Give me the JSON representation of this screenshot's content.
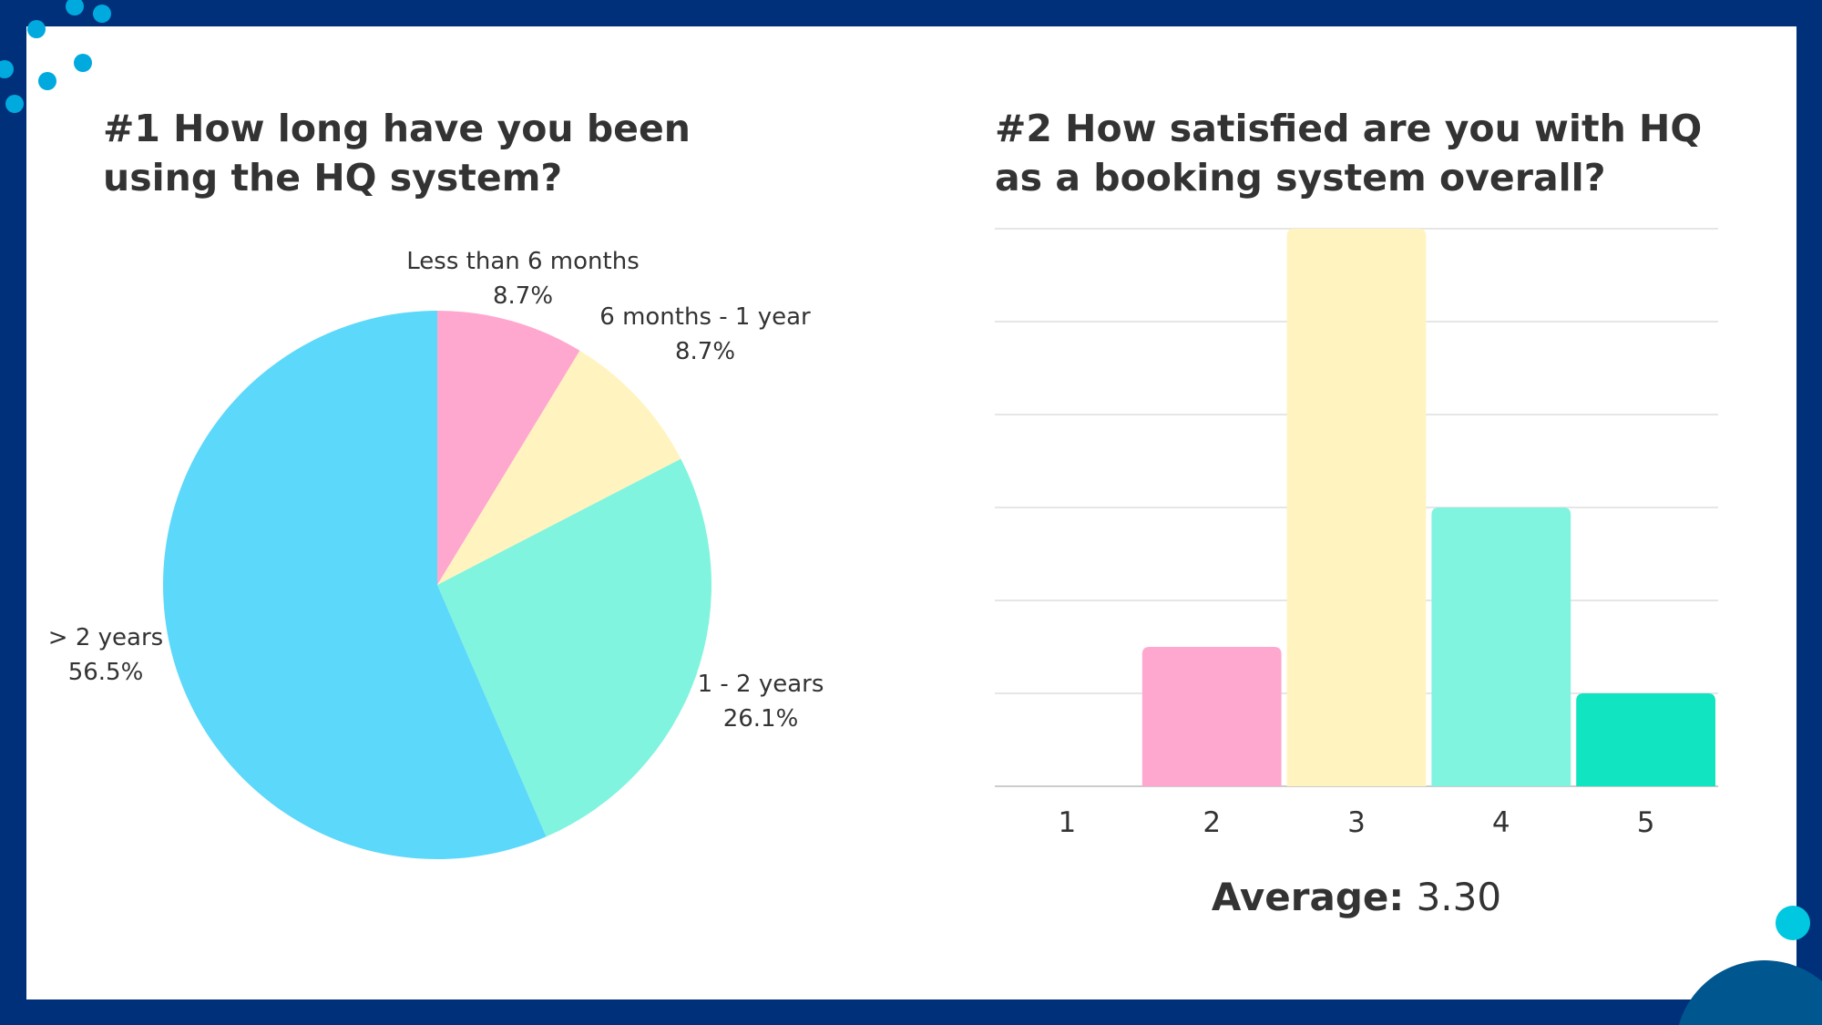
{
  "colors": {
    "frame": "#00307a",
    "dots": "#00a9de",
    "accent_circle": "#00c8e0",
    "corner_circle": "#00568f"
  },
  "chart_data": [
    {
      "type": "pie",
      "title": "#1 How long have you been using the HQ system?",
      "slices": [
        {
          "label": "Less than 6 months",
          "value": 8.7,
          "display": "8.7%",
          "color": "#ffa8cf"
        },
        {
          "label": "6 months - 1 year",
          "value": 8.7,
          "display": "8.7%",
          "color": "#fff4bf"
        },
        {
          "label": "1 - 2 years",
          "value": 26.1,
          "display": "26.1%",
          "color": "#80f4de"
        },
        {
          "label": "> 2 years",
          "value": 56.5,
          "display": "56.5%",
          "color": "#5cd8fa"
        }
      ]
    },
    {
      "type": "bar",
      "title": "#2 How satisfied are you with HQ as a booking system overall?",
      "categories": [
        "1",
        "2",
        "3",
        "4",
        "5"
      ],
      "values": [
        0,
        3,
        12,
        6,
        2
      ],
      "colors": [
        "#ffa8cf",
        "#ffa8cf",
        "#fff4bf",
        "#80f4de",
        "#10e4c0"
      ],
      "ylim": [
        0,
        12
      ],
      "ytick_step": 2,
      "grid": true,
      "average_label": "Average:",
      "average_value": "3.30"
    }
  ]
}
